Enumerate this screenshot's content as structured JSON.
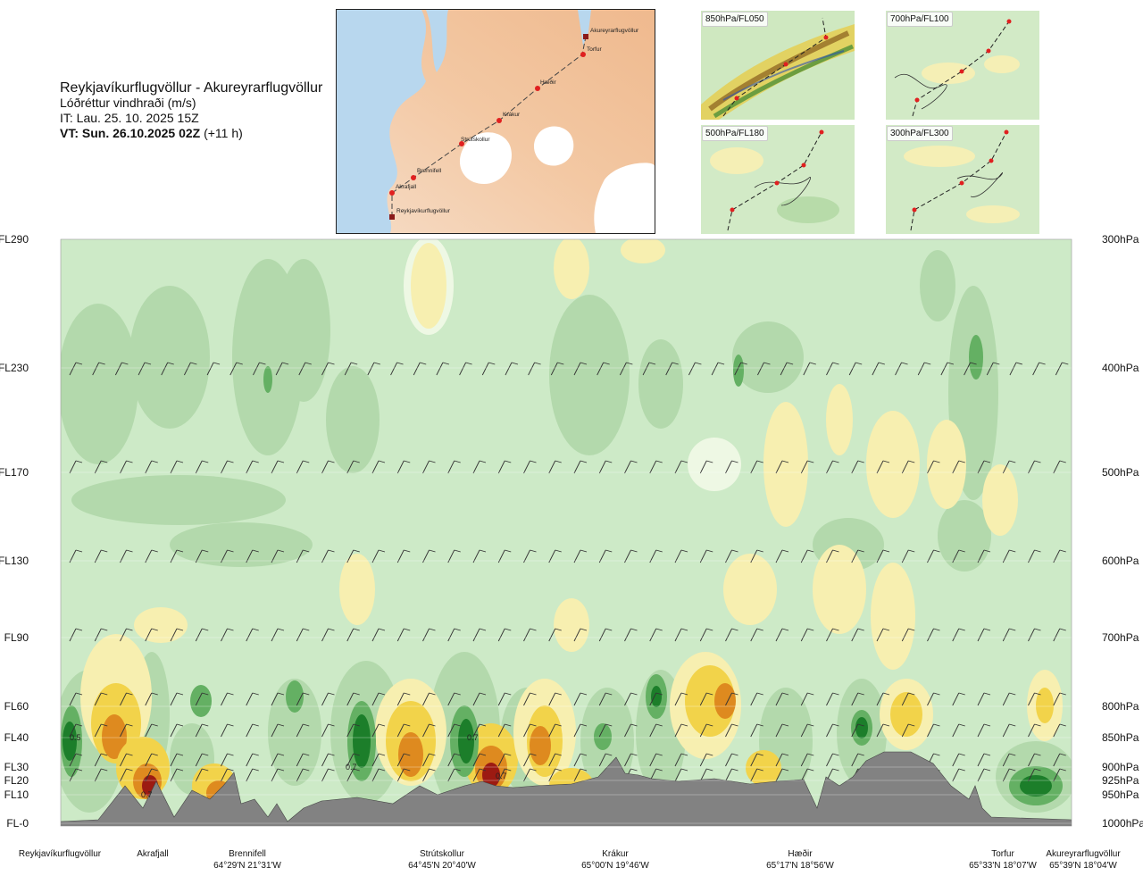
{
  "header": {
    "route": "Reykjavíkurflugvöllur - Akureyrarflugvöllur",
    "variable": "Lóðréttur vindhraði (m/s)",
    "init_time": "IT: Lau. 25. 10. 2025 15Z",
    "valid_time_bold": "VT: Sun. 26.10.2025 02Z",
    "valid_time_offset": "(+11 h)"
  },
  "map": {
    "waypoints": [
      "Reykjavíkurflugvöllur",
      "Akrafjall",
      "Brennifell",
      "Strútskollur",
      "Krákur",
      "Hæðir",
      "Torfur",
      "Akureyrarflugvöllur"
    ]
  },
  "panels": [
    {
      "label": "850hPa/FL050"
    },
    {
      "label": "700hPa/FL100"
    },
    {
      "label": "500hPa/FL180"
    },
    {
      "label": "300hPa/FL300"
    }
  ],
  "colors": {
    "background_green": "#cdeac7",
    "ascent_light": "#f7efb0",
    "ascent_mid": "#f2d34a",
    "ascent_strong": "#de8a1f",
    "ascent_extreme": "#9c1a12",
    "descent_light": "#b3d9ac",
    "descent_mid": "#64b063",
    "descent_strong": "#1c7e2a",
    "terrain": "#828282"
  },
  "chart_data": {
    "type": "heatmap",
    "title": "Lóðréttur vindhraði (m/s)",
    "y_left_ticks": [
      "FL290",
      "FL230",
      "FL170",
      "FL130",
      "FL90",
      "FL60",
      "FL40",
      "FL30",
      "FL20",
      "FL10",
      "FL-0"
    ],
    "y_right_ticks": [
      "300hPa",
      "400hPa",
      "500hPa",
      "600hPa",
      "700hPa",
      "800hPa",
      "850hPa",
      "900hPa",
      "925hPa",
      "950hPa",
      "1000hPa"
    ],
    "pressure_levels_hpa": [
      300,
      400,
      500,
      600,
      700,
      800,
      850,
      900,
      925,
      950,
      1000
    ],
    "x_locations": [
      {
        "name": "Reykjavíkurflugvöllur",
        "coord": ""
      },
      {
        "name": "Akrafjall",
        "coord": ""
      },
      {
        "name": "Brennifell",
        "coord": "64°29'N 21°31'W"
      },
      {
        "name": "Strútskollur",
        "coord": "64°45'N 20°40'W"
      },
      {
        "name": "Krákur",
        "coord": "65°00'N 19°46'W"
      },
      {
        "name": "Hæðir",
        "coord": "65°17'N 18°56'W"
      },
      {
        "name": "Torfur",
        "coord": "65°33'N 18°07'W"
      },
      {
        "name": "Akureyrarflugvöllur",
        "coord": "65°39'N 18°04'W"
      }
    ],
    "annotations": [
      "0.5",
      "0.7",
      "0.7",
      "0.7",
      "0.7"
    ]
  }
}
